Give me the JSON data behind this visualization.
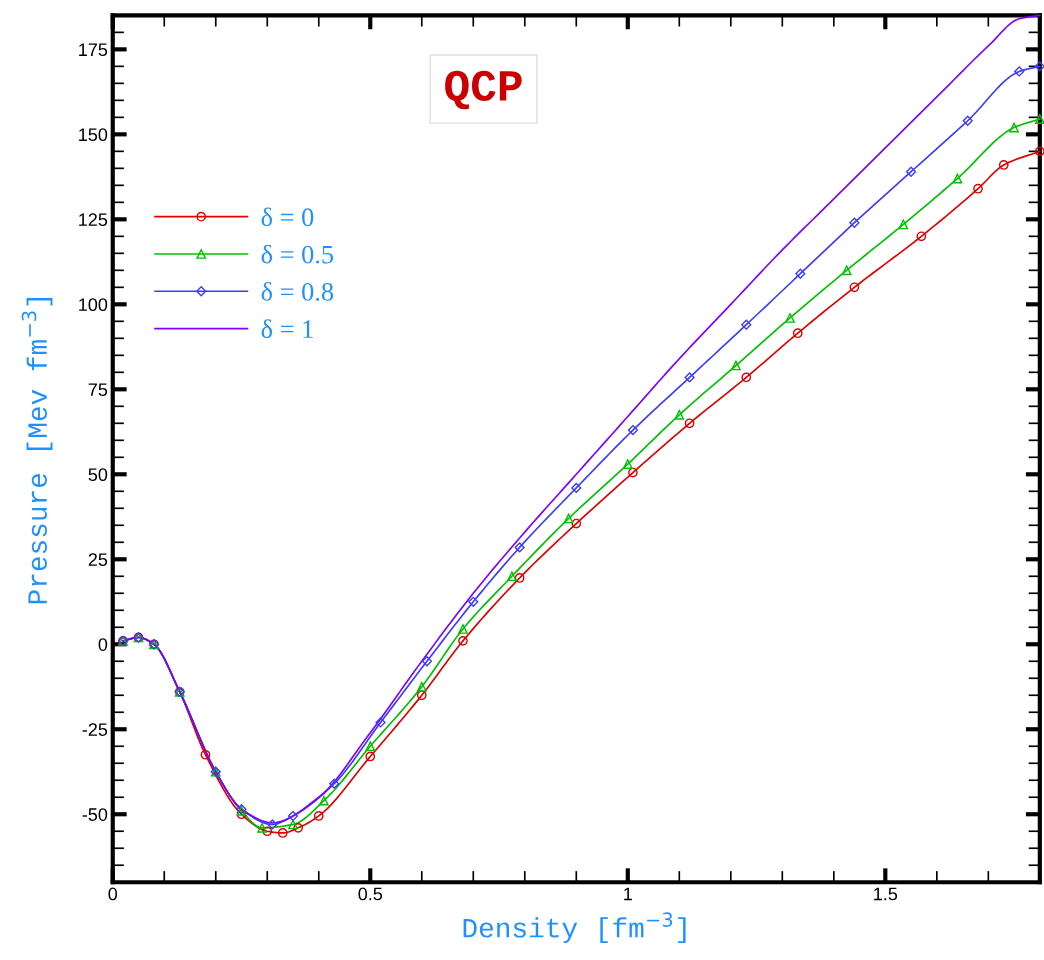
{
  "chart_data": {
    "type": "line",
    "title": "QCP",
    "xlabel": "Density [fm$^{−3}$]",
    "ylabel": "Pressure [Mev fm$^{−3}$]",
    "xlim": [
      0,
      1.8
    ],
    "ylim": [
      -70,
      185
    ],
    "xticks": [
      0,
      0.5,
      1,
      1.5
    ],
    "yticks": [
      -50,
      -25,
      0,
      25,
      50,
      75,
      100,
      125,
      150,
      175
    ],
    "grid": false,
    "legend": "left",
    "line_style": "solid",
    "series": [
      {
        "name": "δ = 0",
        "color": "#e00000",
        "marker": "circle",
        "x": [
          0.02,
          0.05,
          0.08,
          0.13,
          0.18,
          0.25,
          0.3,
          0.33,
          0.36,
          0.4,
          0.5,
          0.6,
          0.68,
          0.79,
          0.9,
          1.01,
          1.12,
          1.23,
          1.33,
          1.44,
          1.57,
          1.68,
          1.73,
          1.8
        ],
        "values": [
          1,
          2,
          0,
          -14,
          -32.5,
          -50,
          -55,
          -55.5,
          -54,
          -50.5,
          -33,
          -15,
          1,
          19.5,
          35.5,
          50.5,
          65,
          78.5,
          91.5,
          105,
          120,
          134,
          141,
          145
        ]
      },
      {
        "name": "δ = 0.5",
        "color": "#00c000",
        "marker": "triangle",
        "x": [
          0.02,
          0.05,
          0.08,
          0.13,
          0.2,
          0.25,
          0.29,
          0.35,
          0.41,
          0.5,
          0.6,
          0.68,
          0.775,
          0.885,
          1.0,
          1.1,
          1.21,
          1.315,
          1.425,
          1.535,
          1.64,
          1.75,
          1.8
        ],
        "values": [
          1,
          2,
          0,
          -14,
          -37.5,
          -49,
          -54,
          -53,
          -46,
          -30,
          -12.5,
          4.5,
          20,
          37,
          53,
          67.5,
          82,
          96,
          110,
          123.5,
          137,
          152,
          154.5
        ]
      },
      {
        "name": "δ = 0.8",
        "color": "#3c3cff",
        "marker": "diamond",
        "x": [
          0.02,
          0.05,
          0.08,
          0.13,
          0.2,
          0.25,
          0.31,
          0.35,
          0.43,
          0.52,
          0.61,
          0.7,
          0.79,
          0.9,
          1.01,
          1.12,
          1.23,
          1.335,
          1.44,
          1.55,
          1.66,
          1.76,
          1.8
        ],
        "values": [
          1,
          2,
          0,
          -14,
          -37.5,
          -48.5,
          -53,
          -50.5,
          -41,
          -23,
          -5,
          12.5,
          28.5,
          46,
          63,
          78.5,
          94,
          109,
          124,
          139,
          154,
          168.5,
          170
        ]
      },
      {
        "name": "δ = 1",
        "color": "#8000ff",
        "marker": "none",
        "x": [
          0.02,
          0.05,
          0.08,
          0.13,
          0.2,
          0.25,
          0.31,
          0.4,
          0.5,
          0.6,
          0.7,
          0.8,
          0.9,
          1.0,
          1.1,
          1.2,
          1.3,
          1.4,
          1.5,
          1.6,
          1.7,
          1.76,
          1.8
        ],
        "values": [
          1,
          2,
          0,
          -14,
          -37.5,
          -48.5,
          -52.5,
          -45,
          -26,
          -5,
          15,
          33,
          50,
          67,
          84,
          100,
          116,
          131,
          146,
          161,
          176,
          184,
          185
        ]
      }
    ]
  }
}
